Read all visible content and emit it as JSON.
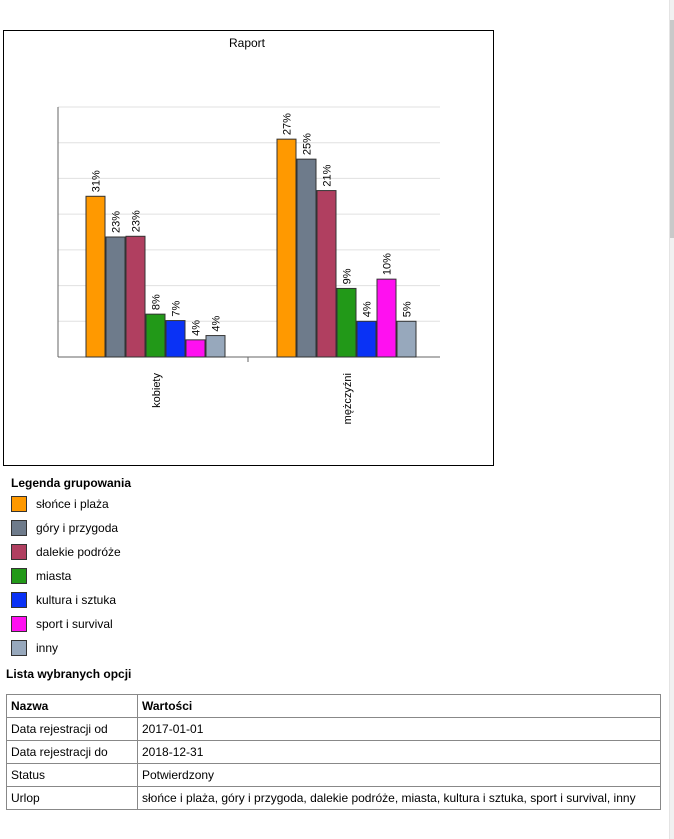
{
  "chart_data": {
    "type": "bar",
    "title": "Raport",
    "categories": [
      "kobiety",
      "mężczyźni"
    ],
    "series": [
      {
        "name": "słońce i plaża",
        "color": "#ff9900",
        "values": [
          31,
          27
        ]
      },
      {
        "name": "góry i przygoda",
        "color": "#6e7b8b",
        "values": [
          23,
          25
        ]
      },
      {
        "name": "dalekie podróże",
        "color": "#b03f60",
        "values": [
          23,
          21
        ]
      },
      {
        "name": "miasta",
        "color": "#229918",
        "values": [
          8,
          9
        ]
      },
      {
        "name": "kultura i sztuka",
        "color": "#0a32f5",
        "values": [
          7,
          4
        ]
      },
      {
        "name": "sport i survival",
        "color": "#ff10f0",
        "values": [
          4,
          10
        ]
      },
      {
        "name": "inny",
        "color": "#97a8bc",
        "values": [
          4,
          5
        ]
      }
    ],
    "value_labels": [
      [
        "31%",
        "23%",
        "23%",
        "8%",
        "7%",
        "4%",
        "4%"
      ],
      [
        "27%",
        "25%",
        "21%",
        "9%",
        "4%",
        "10%",
        "5%"
      ]
    ],
    "heights": [
      [
        22.5,
        16.8,
        16.9,
        6.0,
        5.1,
        2.4,
        3.0
      ],
      [
        30.5,
        27.7,
        23.3,
        9.6,
        5.0,
        10.9,
        5.0
      ]
    ],
    "ylim": [
      0,
      35
    ],
    "grid": true,
    "xlabel": "",
    "ylabel": ""
  },
  "legend": {
    "title": "Legenda grupowania"
  },
  "options": {
    "title": "Lista wybranych opcji",
    "headers": [
      "Nazwa",
      "Wartości"
    ],
    "rows": [
      [
        "Data rejestracji od",
        "2017-01-01"
      ],
      [
        "Data rejestracji do",
        "2018-12-31"
      ],
      [
        "Status",
        "Potwierdzony"
      ],
      [
        "Urlop",
        "słońce i plaża, góry i przygoda, dalekie podróże, miasta, kultura i sztuka, sport i survival, inny"
      ]
    ]
  }
}
